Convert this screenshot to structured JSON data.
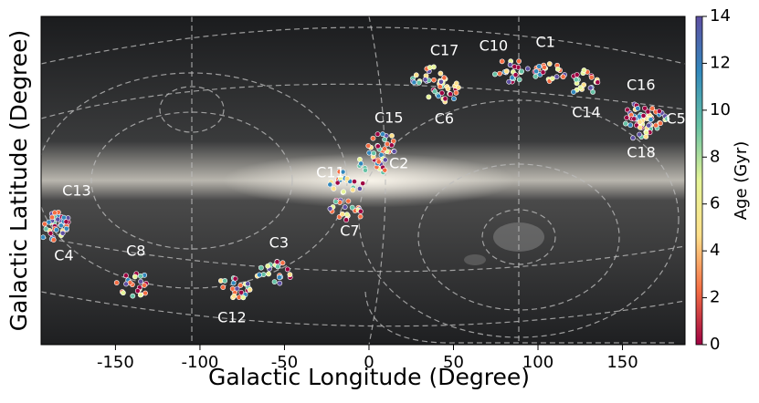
{
  "chart_data": {
    "type": "sky-map",
    "x_label": "Galactic Longitude (Degree)",
    "y_label": "Galactic Latitude (Degree)",
    "xlim": [
      -194,
      187
    ],
    "xticks": [
      -150,
      -100,
      -50,
      0,
      50,
      100,
      150
    ],
    "ylim": [
      -90,
      90
    ],
    "clusters": [
      {
        "label": "C1",
        "x": 106,
        "y": 60
      },
      {
        "label": "C10",
        "x": 84,
        "y": 60
      },
      {
        "label": "C17",
        "x": 36,
        "y": 56
      },
      {
        "label": "C6",
        "x": 44,
        "y": 49
      },
      {
        "label": "C14",
        "x": 127,
        "y": 54
      },
      {
        "label": "C16",
        "x": 162,
        "y": 36
      },
      {
        "label": "C5",
        "x": 166,
        "y": 34
      },
      {
        "label": "C18",
        "x": 160,
        "y": 29
      },
      {
        "label": "C15",
        "x": 8,
        "y": 19
      },
      {
        "label": "C2",
        "x": 2,
        "y": 9
      },
      {
        "label": "C11",
        "x": -13,
        "y": -1
      },
      {
        "label": "C7",
        "x": -13,
        "y": -16
      },
      {
        "label": "C13",
        "x": -187,
        "y": -23
      },
      {
        "label": "C4",
        "x": -187,
        "y": -26
      },
      {
        "label": "C8",
        "x": -139,
        "y": -57
      },
      {
        "label": "C3",
        "x": -56,
        "y": -51
      },
      {
        "label": "C12",
        "x": -80,
        "y": -59
      }
    ],
    "colorbar": {
      "label": "Age (Gyr)",
      "lim": [
        0,
        14
      ],
      "ticks": [
        0,
        2,
        4,
        6,
        8,
        10,
        12,
        14
      ],
      "colors": [
        "#9e0142",
        "#f46d43",
        "#fee08b",
        "#e6f598",
        "#66c2a5",
        "#3288bd",
        "#5e4fa2"
      ]
    }
  }
}
